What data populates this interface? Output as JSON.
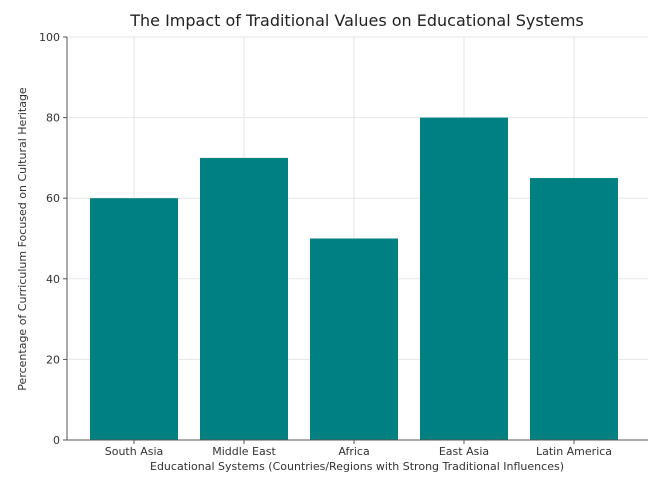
{
  "chart_data": {
    "type": "bar",
    "title": "The Impact of Traditional Values on Educational Systems",
    "xlabel": "Educational Systems (Countries/Regions with Strong Traditional Influences)",
    "ylabel": "Percentage of Curriculum Focused on Cultural Heritage",
    "categories": [
      "South Asia",
      "Middle East",
      "Africa",
      "East Asia",
      "Latin America"
    ],
    "values": [
      60,
      70,
      50,
      80,
      65
    ],
    "ylim": [
      0,
      100
    ],
    "yticks": [
      0,
      20,
      40,
      60,
      80,
      100
    ],
    "grid": true,
    "bar_color": "#008080"
  }
}
